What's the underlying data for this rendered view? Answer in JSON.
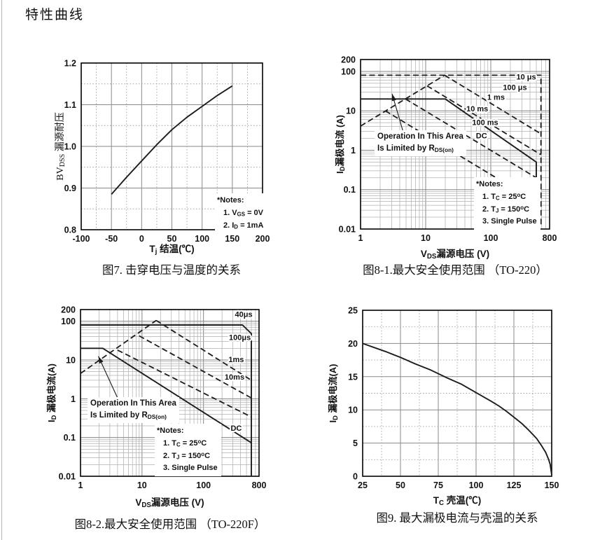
{
  "page": {
    "title": "特性曲线"
  },
  "chart_data": [
    {
      "id": "fig7",
      "type": "line",
      "title": "图7. 击穿电压与温度的关系",
      "xlabel": "T~j~ 结温(℃)",
      "ylabel": "BV~DSS~ 漏源耐压",
      "xscale": "linear",
      "xlim": [
        -100,
        200
      ],
      "xmajor": 50,
      "xminor": 25,
      "yscale": "linear",
      "ylim": [
        0.8,
        1.2
      ],
      "ymajor": 0.1,
      "yminor": 0.05,
      "xticks": [
        [
          "-100",
          -100
        ],
        [
          "-50",
          -50
        ],
        [
          "0",
          0
        ],
        [
          "50",
          50
        ],
        [
          "100",
          100
        ],
        [
          "150",
          150
        ],
        [
          "200",
          200
        ]
      ],
      "yticks": [
        [
          "1.2",
          1.2
        ],
        [
          "1.1",
          1.1
        ],
        [
          "1.0",
          1.0
        ],
        [
          "0.9",
          0.9
        ],
        [
          "0.8",
          0.8
        ]
      ],
      "grid": "major-solid-minor-dotted",
      "legend": "none",
      "series": [
        {
          "name": "normalized-breakdown-voltage",
          "style": "solid",
          "points": [
            [
              -50,
              0.885
            ],
            [
              -25,
              0.926
            ],
            [
              0,
              0.965
            ],
            [
              25,
              1.004
            ],
            [
              50,
              1.04
            ],
            [
              75,
              1.07
            ],
            [
              100,
              1.096
            ],
            [
              125,
              1.122
            ],
            [
              150,
              1.145
            ]
          ]
        }
      ],
      "notes": [
        "*Notes:",
        "1. V~GS~ = 0V",
        "2. I~D~ = 1mA"
      ]
    },
    {
      "id": "fig8_1",
      "type": "line",
      "title": "图8-1.最大安全使用范围 （TO-220）",
      "xlabel": "V~DS~漏源电压 (V)",
      "ylabel": "I~D~漏极电流 (A)",
      "xscale": "log",
      "xlim": [
        1,
        800
      ],
      "yscale": "log",
      "ylim": [
        0.01,
        200
      ],
      "xticks": [
        [
          "1",
          1
        ],
        [
          "10",
          10
        ],
        [
          "100",
          100
        ],
        [
          "800",
          800
        ]
      ],
      "yticks": [
        [
          "200",
          200
        ],
        [
          "100",
          100
        ],
        [
          "10",
          10
        ],
        [
          "1",
          1
        ],
        [
          "0.1",
          0.1
        ],
        [
          "0.01",
          0.01
        ]
      ],
      "grid": "log-fine",
      "legend": "inline-curve-labels",
      "series": [
        {
          "name": "rdson-limit-line",
          "style": "dashed",
          "points": [
            [
              1,
              4.1
            ],
            [
              19.5,
              80
            ]
          ]
        },
        {
          "name": "10us",
          "style": "dashed",
          "points": [
            [
              1,
              80
            ],
            [
              590,
              80
            ],
            [
              590,
              0.012
            ]
          ]
        },
        {
          "name": "100us",
          "style": "dashed",
          "points": [
            [
              19.5,
              80
            ],
            [
              590,
              2.6
            ]
          ]
        },
        {
          "name": "1ms",
          "style": "dashed",
          "points": [
            [
              10.5,
              43
            ],
            [
              590,
              0.77
            ]
          ]
        },
        {
          "name": "10ms",
          "style": "dashed",
          "points": [
            [
              4.9,
              20
            ],
            [
              590,
              0.17
            ]
          ]
        },
        {
          "name": "100ms",
          "style": "dashed",
          "points": [
            [
              2.4,
              10
            ],
            [
              590,
              0.041
            ]
          ]
        },
        {
          "name": "dc",
          "style": "solid",
          "points": [
            [
              1,
              20
            ],
            [
              20,
              20
            ],
            [
              500,
              0.5
            ],
            [
              500,
              0.01
            ]
          ]
        }
      ],
      "curve_labels": [
        {
          "text": "10 μs",
          "x": 350,
          "y": 62
        },
        {
          "text": "100 μs",
          "x": 235,
          "y": 34
        },
        {
          "text": "1 ms",
          "x": 120,
          "y": 19
        },
        {
          "text": "10 ms",
          "x": 62,
          "y": 9.6
        },
        {
          "text": "100 ms",
          "x": 82,
          "y": 4.4
        },
        {
          "text": "DC",
          "x": 72,
          "y": 2.0
        }
      ],
      "annotation": {
        "lines": [
          "Operation In This Area",
          "Is Limited by R~DS(on)~"
        ],
        "arrow": {
          "from": [
            5.5,
            0.95
          ],
          "to": [
            3.05,
            27
          ]
        }
      },
      "notes": [
        "*Notes:",
        "1. T~C~ = 25^o^C",
        "2. T~J~ = 150^o^C",
        "3. Single Pulse"
      ]
    },
    {
      "id": "fig8_2",
      "type": "line",
      "title": "图8-2.最大安全使用范围 （TO-220F）",
      "xlabel": "V~DS~漏源电压 (V)",
      "ylabel": "I~D~ 漏极电流(A)",
      "xscale": "log",
      "xlim": [
        1,
        800
      ],
      "yscale": "log",
      "ylim": [
        0.01,
        200
      ],
      "xticks": [
        [
          "1",
          1
        ],
        [
          "10",
          10
        ],
        [
          "100",
          100
        ],
        [
          "800",
          800
        ]
      ],
      "yticks": [
        [
          "200",
          200
        ],
        [
          "100",
          100
        ],
        [
          "10",
          10
        ],
        [
          "1",
          1
        ],
        [
          "0.1",
          0.1
        ],
        [
          "0.01",
          0.01
        ]
      ],
      "grid": "log-fine",
      "legend": "inline-curve-labels",
      "series": [
        {
          "name": "rdson-limit-line",
          "style": "dashed",
          "points": [
            [
              1,
              4.5
            ],
            [
              17,
              105
            ]
          ]
        },
        {
          "name": "40us",
          "style": "solid",
          "points": [
            [
              1,
              80
            ],
            [
              430,
              80
            ],
            [
              600,
              48
            ],
            [
              600,
              0.01
            ]
          ]
        },
        {
          "name": "100us",
          "style": "dashed",
          "points": [
            [
              17,
              105
            ],
            [
              600,
              3.0
            ]
          ]
        },
        {
          "name": "1ms",
          "style": "dashed",
          "points": [
            [
              9,
              42
            ],
            [
              600,
              1.05
            ]
          ]
        },
        {
          "name": "10ms",
          "style": "dashed",
          "points": [
            [
              4,
              18
            ],
            [
              600,
              0.34
            ]
          ]
        },
        {
          "name": "dc",
          "style": "solid",
          "points": [
            [
              1,
              20
            ],
            [
              2.3,
              20
            ],
            [
              600,
              0.073
            ]
          ]
        }
      ],
      "curve_labels": [
        {
          "text": "40μs",
          "x": 450,
          "y": 130
        },
        {
          "text": "100μs",
          "x": 390,
          "y": 33
        },
        {
          "text": "1ms",
          "x": 340,
          "y": 8.8
        },
        {
          "text": "10ms",
          "x": 320,
          "y": 3.1
        },
        {
          "text": "DC",
          "x": 340,
          "y": 0.15
        }
      ],
      "annotation": {
        "lines": [
          "Operation In This Area",
          "Is Limited by R~DS(on)~"
        ],
        "arrow": {
          "from": [
            4,
            1.05
          ],
          "to": [
            1.95,
            12.5
          ]
        }
      },
      "notes": [
        "*Notes:",
        "1. T~C~ = 25^o^C",
        "2. T~J~ = 150^o^C",
        "3. Single Pulse"
      ]
    },
    {
      "id": "fig9",
      "type": "line",
      "title": "图9. 最大漏极电流与壳温的关系",
      "xlabel": "T~C~ 壳温(℃)",
      "ylabel": "I~D~ 漏极电流(A)",
      "xscale": "linear",
      "xlim": [
        25,
        150
      ],
      "xmajor": 25,
      "xminor": 12.5,
      "yscale": "linear",
      "ylim": [
        0,
        25
      ],
      "ymajor": 5,
      "yminor": 2.5,
      "xticks": [
        [
          "25",
          25
        ],
        [
          "50",
          50
        ],
        [
          "75",
          75
        ],
        [
          "100",
          100
        ],
        [
          "125",
          125
        ],
        [
          "150",
          150
        ]
      ],
      "yticks": [
        [
          "25",
          25
        ],
        [
          "20",
          20
        ],
        [
          "15",
          15
        ],
        [
          "10",
          10
        ],
        [
          "5",
          5
        ],
        [
          "0",
          0
        ]
      ],
      "grid": "major-solid-minor-dotted",
      "legend": "none",
      "series": [
        {
          "name": "max-drain-current-vs-case-temp",
          "style": "solid",
          "points": [
            [
              25,
              20
            ],
            [
              40,
              18.8
            ],
            [
              50,
              17.9
            ],
            [
              60,
              16.9
            ],
            [
              70,
              16.0
            ],
            [
              80,
              14.9
            ],
            [
              90,
              13.9
            ],
            [
              100,
              12.6
            ],
            [
              110,
              11.3
            ],
            [
              115,
              10.6
            ],
            [
              120,
              9.8
            ],
            [
              125,
              8.9
            ],
            [
              130,
              8.0
            ],
            [
              135,
              6.9
            ],
            [
              140,
              5.7
            ],
            [
              143,
              4.7
            ],
            [
              146,
              3.6
            ],
            [
              148,
              2.5
            ],
            [
              149,
              1.8
            ],
            [
              150,
              0.2
            ]
          ]
        }
      ],
      "notes": []
    }
  ]
}
